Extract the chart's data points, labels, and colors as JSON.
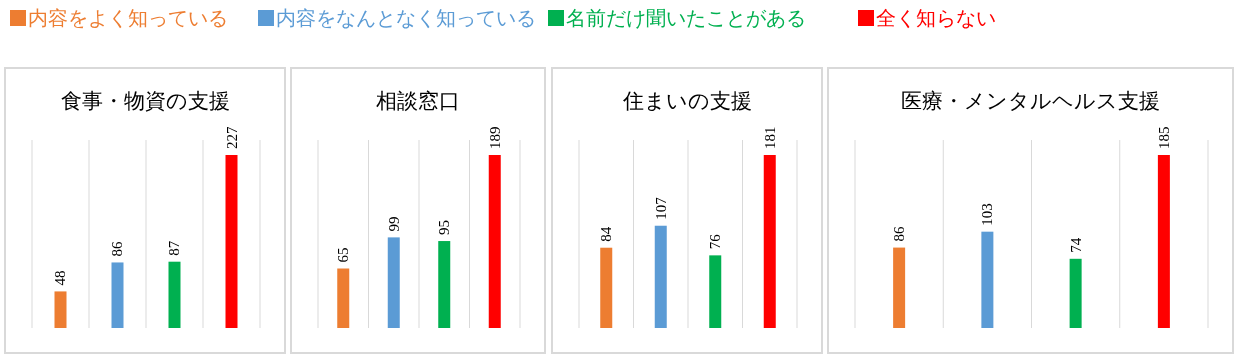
{
  "chart_data": [
    {
      "type": "other",
      "annotations": [
        "内容をよく知っている",
        "内容をなんとなく知っている",
        "名前だけ聞いたことがある",
        "全く知らない"
      ],
      "colors": [
        "#ed7d31",
        "#5b9bd5",
        "#00b050",
        "#ff0000"
      ]
    },
    {
      "type": "bar",
      "title": "食事・物資の支援",
      "categories": [
        null,
        null,
        null,
        null
      ],
      "values": [
        48,
        86,
        87,
        227
      ],
      "colors": [
        "#ed7d31",
        "#5b9bd5",
        "#00b050",
        "#ff0000"
      ],
      "data_labels": true
    },
    {
      "type": "bar",
      "title": "相談窓口",
      "categories": [
        null,
        null,
        null,
        null
      ],
      "values": [
        65,
        99,
        95,
        189
      ],
      "colors": [
        "#ed7d31",
        "#5b9bd5",
        "#00b050",
        "#ff0000"
      ],
      "data_labels": true
    },
    {
      "type": "bar",
      "title": "住まいの支援",
      "categories": [
        null,
        null,
        null,
        null
      ],
      "values": [
        84,
        107,
        76,
        181
      ],
      "colors": [
        "#ed7d31",
        "#5b9bd5",
        "#00b050",
        "#ff0000"
      ],
      "data_labels": true
    },
    {
      "type": "bar",
      "title": "医療・メンタルヘルス支援",
      "categories": [
        null,
        null,
        null,
        null
      ],
      "values": [
        86,
        103,
        74,
        185
      ],
      "colors": [
        "#ed7d31",
        "#5b9bd5",
        "#00b050",
        "#ff0000"
      ],
      "data_labels": true
    }
  ]
}
